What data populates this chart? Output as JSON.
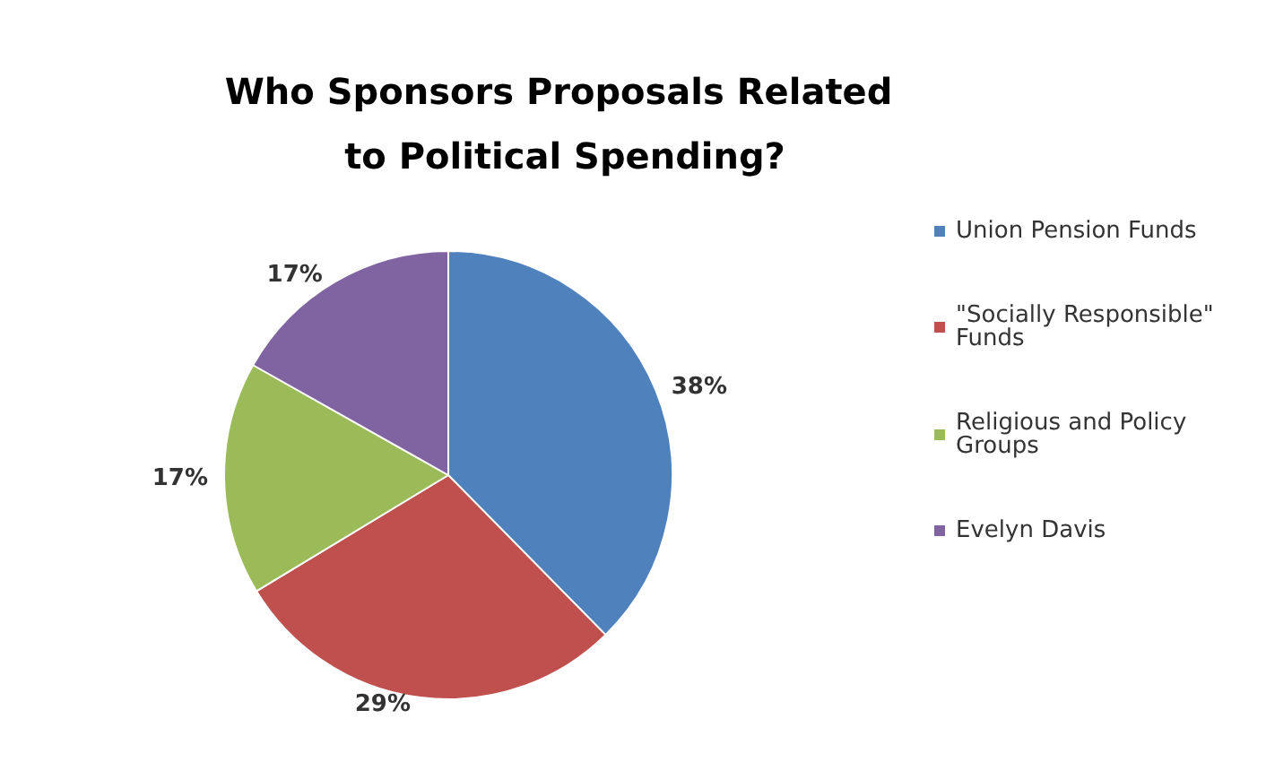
{
  "chart_data": {
    "type": "pie",
    "title": "Who Sponsors Proposals Related to Political Spending?",
    "categories": [
      "Union Pension Funds",
      "\"Socially Responsible\" Funds",
      "Religious and Policy Groups",
      "Evelyn Davis"
    ],
    "values": [
      38,
      29,
      17,
      17
    ],
    "colors": [
      "#4f81bd",
      "#c0504d",
      "#9bbb59",
      "#8064a2"
    ],
    "value_labels": [
      "38%",
      "29%",
      "17%",
      "17%"
    ],
    "legend": "right"
  }
}
